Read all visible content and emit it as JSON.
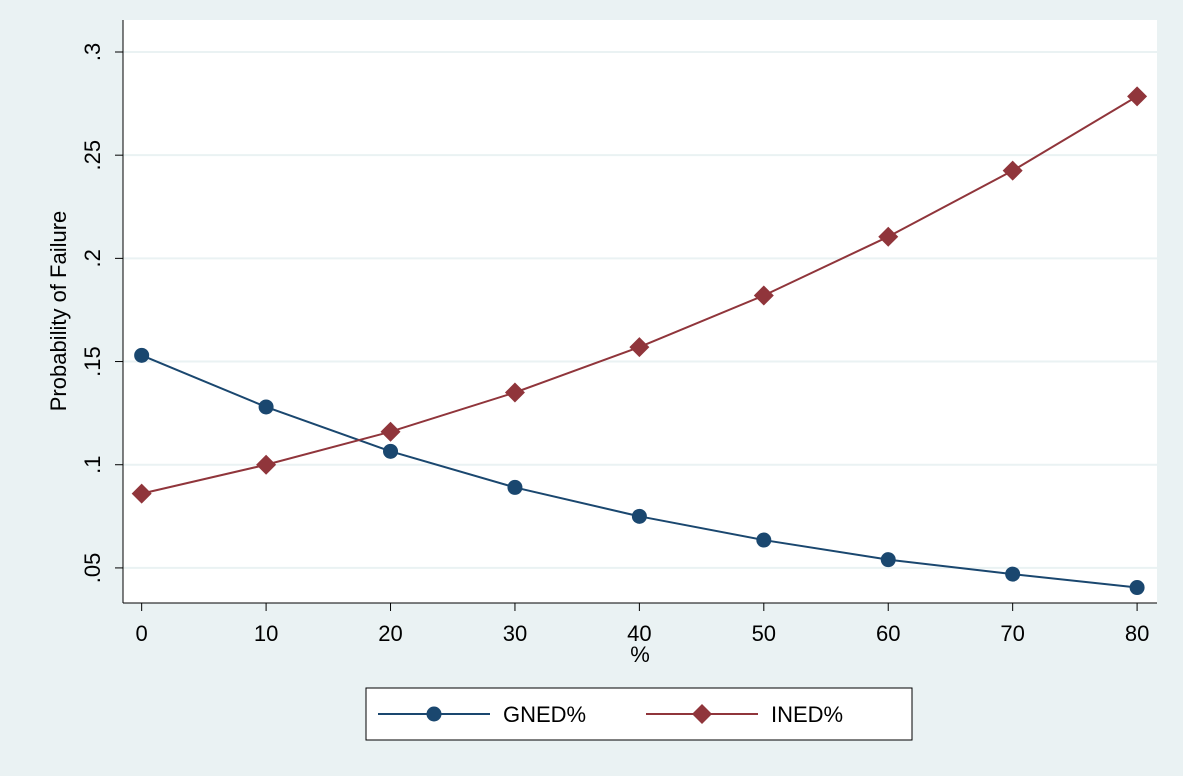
{
  "chart_data": {
    "type": "line",
    "x_label": "%",
    "y_label": "Probability of Failure",
    "x": [
      0,
      10,
      20,
      30,
      40,
      50,
      60,
      70,
      80
    ],
    "series": [
      {
        "name": "GNED%",
        "color": "#1a476f",
        "marker": "circle",
        "values": [
          0.153,
          0.128,
          0.1065,
          0.089,
          0.075,
          0.0635,
          0.054,
          0.047,
          0.0405
        ]
      },
      {
        "name": "INED%",
        "color": "#90353b",
        "marker": "diamond",
        "values": [
          0.086,
          0.1,
          0.116,
          0.135,
          0.157,
          0.182,
          0.2105,
          0.2425,
          0.2785
        ]
      }
    ],
    "xlim": [
      -1.5,
      81.6
    ],
    "xticks": [
      0,
      10,
      20,
      30,
      40,
      50,
      60,
      70,
      80
    ],
    "ylim": [
      0.033,
      0.3155
    ],
    "yticks": [
      {
        "value": 0.05,
        "label": ".05"
      },
      {
        "value": 0.1,
        "label": ".1"
      },
      {
        "value": 0.15,
        "label": ".15"
      },
      {
        "value": 0.2,
        "label": ".2"
      },
      {
        "value": 0.25,
        "label": ".25"
      },
      {
        "value": 0.3,
        "label": ".3"
      }
    ],
    "grid": true,
    "legend": "bottom"
  }
}
